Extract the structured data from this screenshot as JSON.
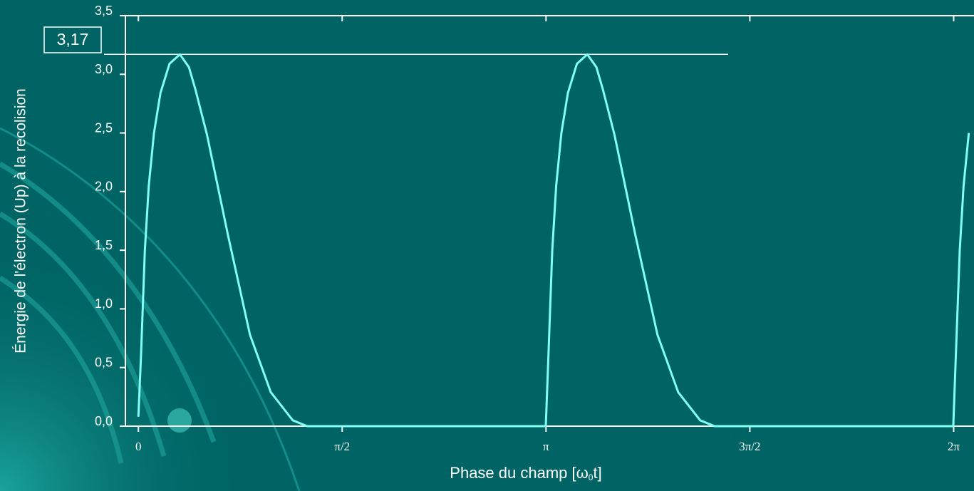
{
  "chart_data": {
    "type": "line",
    "x_label": {
      "before": "Phase du champ [ω",
      "subscript": "0",
      "after": "t]"
    },
    "y_label": "Énergie de l'électron (Up) à la recolision",
    "x": [
      0,
      0.02,
      0.05,
      0.08,
      0.12,
      0.17,
      0.24,
      0.32,
      0.39,
      0.44,
      0.53,
      0.69,
      0.86,
      1.02,
      1.19,
      1.3,
      3.14,
      3.16,
      3.19,
      3.22,
      3.26,
      3.31,
      3.38,
      3.46,
      3.53,
      3.58,
      3.67,
      3.83,
      4.0,
      4.16,
      4.33,
      4.44,
      6.28,
      6.3,
      6.33,
      6.36,
      6.4
    ],
    "series": [
      {
        "color": "#80fff4",
        "values": [
          0.08,
          0.6,
          1.5,
          2.05,
          2.5,
          2.84,
          3.09,
          3.17,
          3.06,
          2.87,
          2.48,
          1.63,
          0.78,
          0.29,
          0.05,
          0,
          0,
          0.6,
          1.5,
          2.05,
          2.5,
          2.84,
          3.09,
          3.17,
          3.06,
          2.87,
          2.48,
          1.63,
          0.78,
          0.29,
          0.05,
          0,
          0,
          0.6,
          1.5,
          2.05,
          2.5
        ]
      }
    ],
    "xlim": [
      -0.1,
      6.44
    ],
    "ylim": [
      0,
      3.5
    ],
    "xticks": [
      0,
      {
        "value": 1.5708,
        "label": "π/2"
      },
      {
        "value": 3.1416,
        "label": "π"
      },
      {
        "value": 4.7124,
        "label": "3π/2"
      },
      {
        "value": 6.2832,
        "label": "2π"
      }
    ],
    "yticks": [
      {
        "value": 0,
        "label": "0,0"
      },
      {
        "value": 0.5,
        "label": "0,5"
      },
      {
        "value": 1,
        "label": "1,0"
      },
      {
        "value": 1.5,
        "label": "1,5"
      },
      {
        "value": 2,
        "label": "2,0"
      },
      {
        "value": 2.5,
        "label": "2,5"
      },
      {
        "value": 3,
        "label": "3,0"
      },
      {
        "value": 3.5,
        "label": "3,5"
      }
    ],
    "annotation": {
      "value": 3.17,
      "label": "3,17"
    }
  }
}
